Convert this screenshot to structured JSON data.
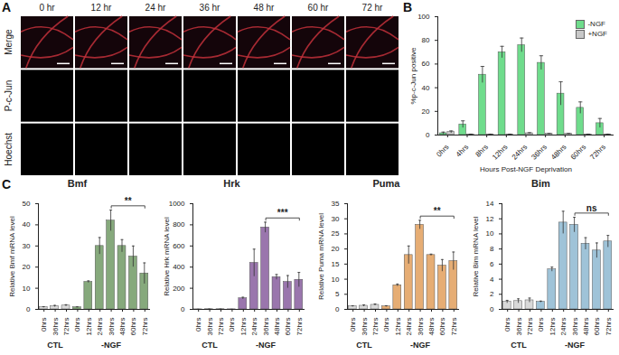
{
  "image_panel": {
    "panel": "A",
    "columns": [
      "0 hr",
      "12 hr",
      "24 hr",
      "36 hr",
      "48 hr",
      "60 hr",
      "72 hr"
    ],
    "rows": [
      "Merge",
      "P-c-Jun",
      "Hoechst"
    ]
  },
  "chart_data": [
    {
      "panel": "B",
      "type": "bar",
      "y_label": "%p-c-Jun positive",
      "x_label": "Hours Post-NGF Deprivation",
      "categories": [
        "0hrs",
        "4hrs",
        "8hrs",
        "12hrs",
        "24hrs",
        "36hrs",
        "48hrs",
        "60hrs",
        "72hrs"
      ],
      "series": [
        {
          "name": "-NGF",
          "color": "#6fdc8c",
          "values": [
            1.5,
            9,
            51,
            70,
            76,
            61,
            35,
            23,
            10
          ],
          "errors": [
            1,
            3,
            7,
            5,
            6,
            6,
            10,
            5,
            4
          ]
        },
        {
          "name": "+NGF",
          "color": "#c8c8c8",
          "values": [
            2.5,
            0.5,
            0.5,
            0.5,
            1.5,
            1,
            1,
            0.5,
            0.5
          ],
          "errors": [
            1,
            0.3,
            0.3,
            0.3,
            0.5,
            0.5,
            0.5,
            0.3,
            0.3
          ]
        }
      ],
      "ylim": [
        0,
        100
      ],
      "yticks": [
        0,
        20,
        40,
        60,
        80,
        100
      ],
      "legend": "top-right"
    },
    {
      "panel": "C",
      "type": "bar",
      "title": "Bmf",
      "y_label": "Relative Bmf mRNA level",
      "categories": [
        "0hrs",
        "36hrs",
        "72hrs",
        "0hrs",
        "12hrs",
        "24hrs",
        "36hrs",
        "48hrs",
        "60hrs",
        "72hrs"
      ],
      "series": [
        {
          "name": "CTL",
          "color": "#d9d9d9",
          "values": [
            1,
            1.5,
            1.8,
            null,
            null,
            null,
            null,
            null,
            null,
            null
          ],
          "errors": [
            0.3,
            0.4,
            0.4,
            null,
            null,
            null,
            null,
            null,
            null,
            null
          ]
        },
        {
          "name": "-NGF",
          "color": "#86a97c",
          "values": [
            null,
            null,
            null,
            1,
            13,
            30,
            42,
            30,
            25,
            17
          ],
          "errors": [
            null,
            null,
            null,
            0.2,
            0.5,
            4,
            5,
            3,
            5,
            5
          ]
        }
      ],
      "ylim": [
        0,
        50
      ],
      "yticks": [
        0,
        10,
        20,
        30,
        40,
        50
      ],
      "annotations": [
        {
          "text": "**",
          "series": "-NGF",
          "from": "36hrs",
          "to": "72hrs"
        }
      ]
    },
    {
      "type": "bar",
      "title": "Hrk",
      "y_label": "Relative Hrk mRNA level",
      "categories": [
        "0hrs",
        "36hrs",
        "72hrs",
        "0hrs",
        "12hrs",
        "24hrs",
        "36hrs",
        "48hrs",
        "60hrs",
        "72hrs"
      ],
      "series": [
        {
          "name": "CTL",
          "color": "#d9d9d9",
          "values": [
            1,
            2,
            2,
            null,
            null,
            null,
            null,
            null,
            null,
            null
          ],
          "errors": [
            0.5,
            1,
            1,
            null,
            null,
            null,
            null,
            null,
            null,
            null
          ]
        },
        {
          "name": "-NGF",
          "color": "#9a76ad",
          "values": [
            null,
            null,
            null,
            1,
            105,
            440,
            775,
            305,
            260,
            280
          ],
          "errors": [
            null,
            null,
            null,
            0.3,
            10,
            130,
            50,
            25,
            60,
            70
          ]
        }
      ],
      "ylim": [
        0,
        1000
      ],
      "yticks": [
        0,
        200,
        400,
        600,
        800,
        1000
      ],
      "annotations": [
        {
          "text": "***",
          "series": "-NGF",
          "from": "36hrs",
          "to": "72hrs"
        }
      ]
    },
    {
      "type": "bar",
      "title": "Puma",
      "y_label": "Relative Puma mRNA level",
      "categories": [
        "0hrs",
        "36hrs",
        "72hrs",
        "0hrs",
        "12hrs",
        "24hrs",
        "36hrs",
        "48hrs",
        "60hrs",
        "72hrs"
      ],
      "series": [
        {
          "name": "CTL",
          "color": "#d9d9d9",
          "values": [
            1,
            1.2,
            1.5,
            null,
            null,
            null,
            null,
            null,
            null,
            null
          ],
          "errors": [
            0.2,
            0.3,
            0.3,
            null,
            null,
            null,
            null,
            null,
            null,
            null
          ]
        },
        {
          "name": "-NGF",
          "color": "#e6ad74",
          "values": [
            null,
            null,
            null,
            1,
            8,
            18,
            28,
            18,
            14.5,
            16
          ],
          "errors": [
            null,
            null,
            null,
            0.2,
            0.4,
            3,
            1.5,
            0.3,
            2,
            3
          ]
        }
      ],
      "ylim": [
        0,
        35
      ],
      "yticks": [
        0,
        5,
        10,
        15,
        20,
        25,
        30,
        35
      ],
      "annotations": [
        {
          "text": "**",
          "series": "-NGF",
          "from": "36hrs",
          "to": "72hrs"
        }
      ]
    },
    {
      "type": "bar",
      "title": "Bim",
      "y_label": "Relative Bim mRNA level",
      "categories": [
        "0hrs",
        "36hrs",
        "72hrs",
        "0hrs",
        "12hrs",
        "24hrs",
        "36hrs",
        "48hrs",
        "60hrs",
        "72hrs"
      ],
      "series": [
        {
          "name": "CTL",
          "color": "#d9d9d9",
          "values": [
            1,
            1.1,
            1.2,
            null,
            null,
            null,
            null,
            null,
            null,
            null
          ],
          "errors": [
            0.2,
            0.3,
            0.3,
            null,
            null,
            null,
            null,
            null,
            null,
            null
          ]
        },
        {
          "name": "-NGF",
          "color": "#9fc3d8",
          "values": [
            null,
            null,
            null,
            1,
            5.3,
            11.5,
            11.2,
            8.7,
            7.8,
            9
          ],
          "errors": [
            null,
            null,
            null,
            0.1,
            0.3,
            1.5,
            1,
            0.8,
            1,
            0.8
          ]
        }
      ],
      "ylim": [
        0,
        14
      ],
      "yticks": [
        0,
        2,
        4,
        6,
        8,
        10,
        12,
        14
      ],
      "annotations": [
        {
          "text": "ns",
          "series": "-NGF",
          "from": "36hrs",
          "to": "72hrs"
        }
      ]
    }
  ]
}
